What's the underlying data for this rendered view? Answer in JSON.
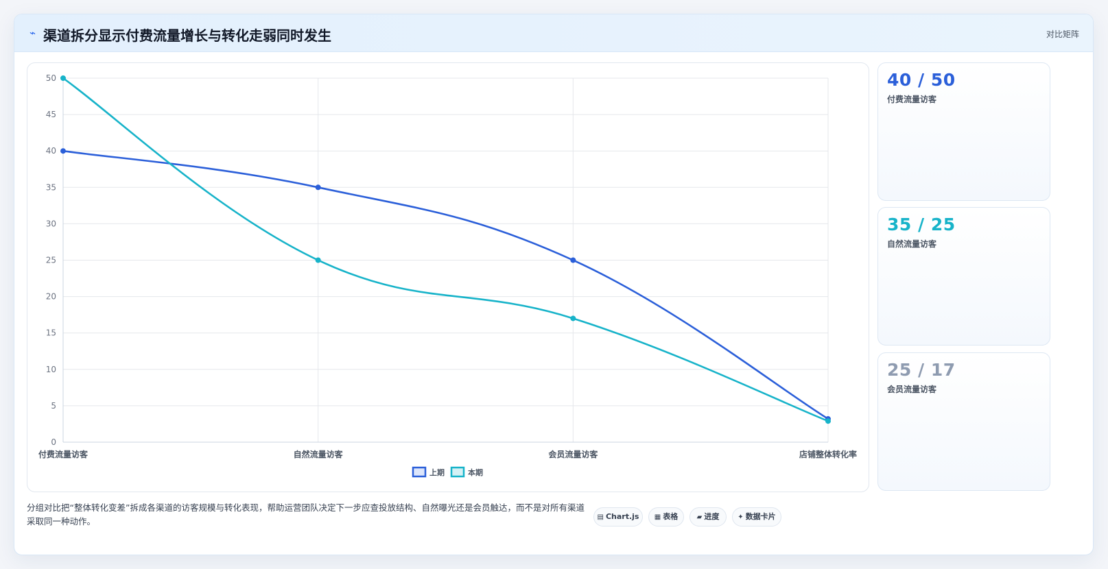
{
  "header": {
    "icon": "lightning-icon",
    "title": "渠道拆分显示付费流量增长与转化走弱同时发生",
    "tag": "对比矩阵"
  },
  "colors": {
    "series_prev": "#2b5fd9",
    "series_curr": "#17b3c9",
    "kpi_1": "#2b5fd9",
    "kpi_2": "#17b3c9",
    "kpi_3": "#8e9bb0"
  },
  "chart_data": {
    "type": "line",
    "categories": [
      "付费流量访客",
      "自然流量访客",
      "会员流量访客",
      "店铺整体转化率"
    ],
    "series": [
      {
        "name": "上期",
        "values": [
          40,
          35,
          25,
          3.2
        ]
      },
      {
        "name": "本期",
        "values": [
          50,
          25,
          17,
          2.9
        ]
      }
    ],
    "ylim": [
      0,
      50
    ],
    "yticks": [
      0,
      5,
      10,
      15,
      20,
      25,
      30,
      35,
      40,
      45,
      50
    ],
    "legend_position": "bottom-center",
    "grid": true,
    "xlabel": "",
    "ylabel": ""
  },
  "kpis": [
    {
      "value": "40 / 50",
      "label": "付费流量访客"
    },
    {
      "value": "35 / 25",
      "label": "自然流量访客"
    },
    {
      "value": "25 / 17",
      "label": "会员流量访客"
    }
  ],
  "footer": {
    "description": "分组对比把“整体转化变差”拆成各渠道的访客规模与转化表现，帮助运营团队决定下一步应查投放结构、自然曝光还是会员触达，而不是对所有渠道采取同一种动作。",
    "tags": [
      {
        "icon": "chart-icon",
        "glyph": "▤",
        "label": "Chart.js"
      },
      {
        "icon": "table-icon",
        "glyph": "▦",
        "label": "表格"
      },
      {
        "icon": "progress-icon",
        "glyph": "▰",
        "label": "进度"
      },
      {
        "icon": "card-icon",
        "glyph": "✦",
        "label": "数据卡片"
      }
    ]
  }
}
